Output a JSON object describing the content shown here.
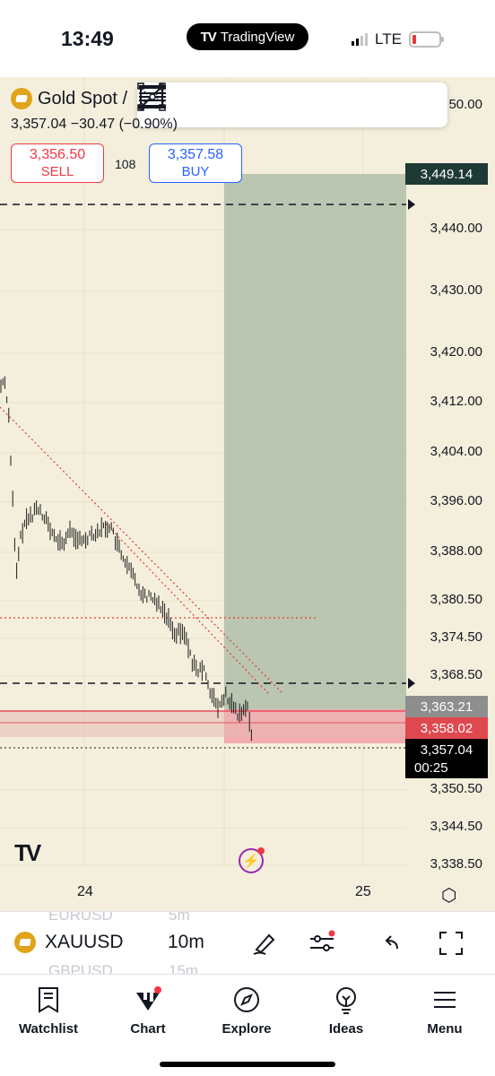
{
  "status_bar": {
    "time": "13:49",
    "app_pill": "TradingView",
    "network": "LTE"
  },
  "symbol": {
    "name": "Gold Spot /",
    "price": "3,357.04",
    "change": "−30.47",
    "change_pct": "(−0.90%)",
    "icon": "gold-bars-icon"
  },
  "trade": {
    "sell_price": "3,356.50",
    "sell_label": "SELL",
    "buy_price": "3,357.58",
    "buy_label": "BUY",
    "spread": "108"
  },
  "drawing_toolbar": {
    "tools": [
      "rectangle-icon",
      "trend-line-icon",
      "fib-retracement-icon",
      "fib-extension-icon",
      "horizontal-line-icon",
      "parallel-lines-icon"
    ]
  },
  "price_axis": {
    "labels": [
      "3,440.00",
      "3,430.00",
      "3,420.00",
      "3,412.00",
      "3,404.00",
      "3,396.00",
      "3,388.00",
      "3,380.50",
      "3,374.50",
      "3,368.50",
      "3,350.50",
      "3,344.50",
      "3,338.50"
    ],
    "partial_top": "50.00"
  },
  "price_tags": {
    "target": "3,449.14",
    "entry": "3,363.21",
    "stop": "3,358.02",
    "last": "3,357.04",
    "countdown": "00:25"
  },
  "time_axis": {
    "labels": [
      "24",
      "25"
    ]
  },
  "colors": {
    "background": "#f4efdc",
    "target_zone": "#a8b8a4",
    "stop_zone": "#f29aa2",
    "sell": "#f23645",
    "buy": "#2962ff",
    "last_price": "#000000"
  },
  "bottom_toolbar": {
    "symbol": "XAUUSD",
    "timeframe": "10m",
    "ghost_symbols": [
      "EURUSD",
      "GBPUSD"
    ],
    "ghost_timeframes": [
      "5m",
      "15m"
    ]
  },
  "nav": {
    "items": [
      "Watchlist",
      "Chart",
      "Explore",
      "Ideas",
      "Menu"
    ]
  }
}
